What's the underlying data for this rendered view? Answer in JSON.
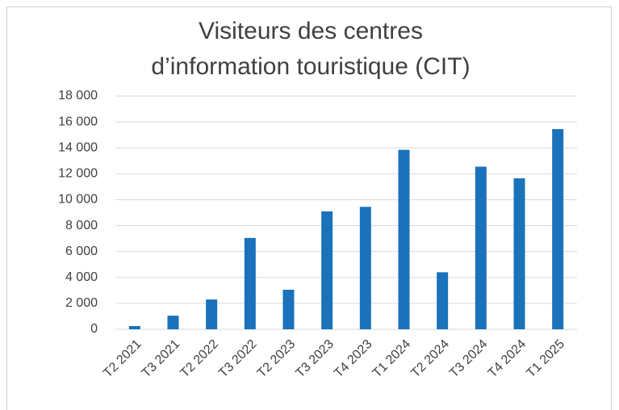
{
  "chart_data": {
    "type": "bar",
    "title": [
      "Visiteurs des centres",
      "d’information touristique (CIT)"
    ],
    "categories": [
      "T2 2021",
      "T3 2021",
      "T2 2022",
      "T3 2022",
      "T2 2023",
      "T3 2023",
      "T4 2023",
      "T1 2024",
      "T2 2024",
      "T3 2024",
      "T4 2024",
      "T1 2025"
    ],
    "values": [
      250,
      1050,
      2300,
      7050,
      3050,
      9100,
      9450,
      13850,
      4400,
      12550,
      11650,
      15450
    ],
    "color": "#1a72bb",
    "ylim": [
      0,
      18000
    ],
    "yticks": [
      0,
      {
        "value": 2000,
        "label": "2 000"
      },
      {
        "value": 4000,
        "label": "4 000"
      },
      {
        "value": 6000,
        "label": "6 000"
      },
      {
        "value": 8000,
        "label": "8 000"
      },
      {
        "value": 10000,
        "label": "10 000"
      },
      {
        "value": 12000,
        "label": "12 000"
      },
      {
        "value": 14000,
        "label": "14 000"
      },
      {
        "value": 16000,
        "label": "16 000"
      },
      {
        "value": 18000,
        "label": "18 000"
      }
    ],
    "grid": true
  }
}
